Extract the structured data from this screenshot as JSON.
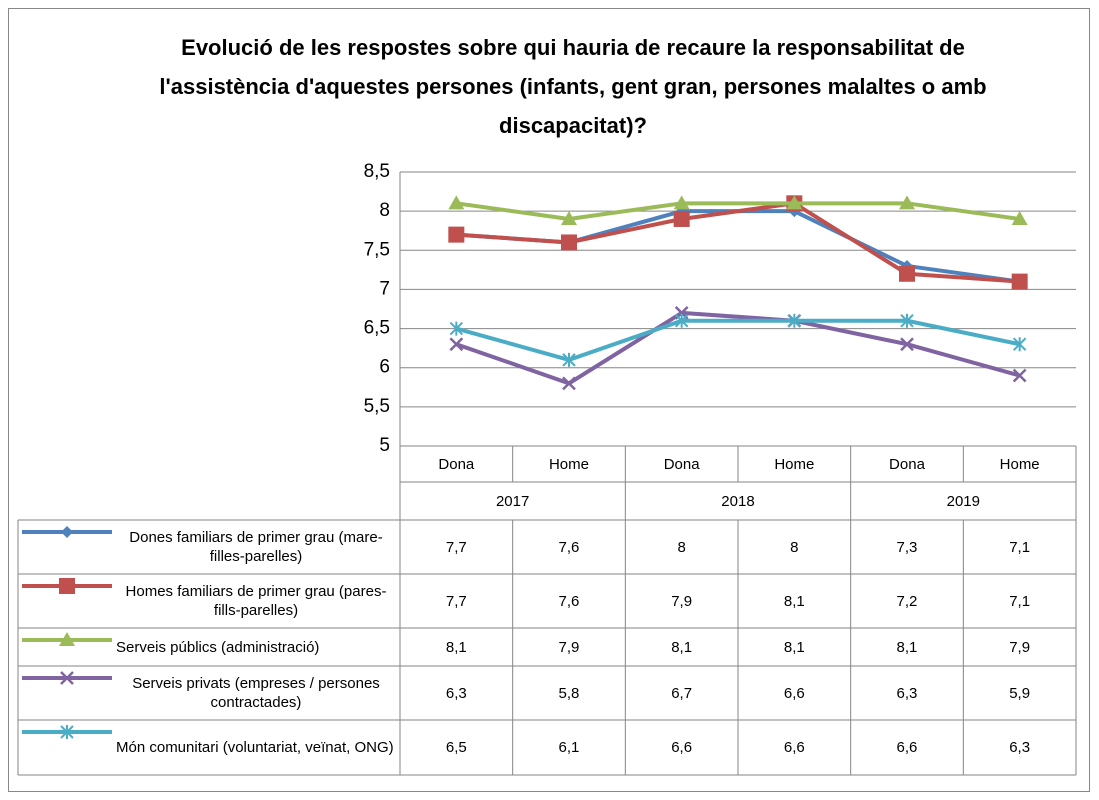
{
  "chart_data": {
    "type": "line",
    "title": "Evolució de les respostes sobre qui hauria de recaure la responsabilitat de l'assistència d'aquestes persones (infants, gent gran, persones malaltes o amb discapacitat)?",
    "categories": [
      "Dona",
      "Home",
      "Dona",
      "Home",
      "Dona",
      "Home"
    ],
    "category_groups": [
      "2017",
      "2018",
      "2019"
    ],
    "ylim": [
      5,
      8.5
    ],
    "yticks": [
      5,
      {
        "value": 5.5,
        "label": "5,5"
      },
      6,
      {
        "value": 6.5,
        "label": "6,5"
      },
      7,
      {
        "value": 7.5,
        "label": "7,5"
      },
      8,
      {
        "value": 8.5,
        "label": "8,5"
      }
    ],
    "grid": true,
    "series": [
      {
        "name": "Dones familiars de primer grau (mare-filles-parelles)",
        "color": "#4f81bd",
        "marker": "diamond",
        "values": [
          7.7,
          7.6,
          8,
          8,
          7.3,
          7.1
        ],
        "value_labels": [
          "7,7",
          "7,6",
          "8",
          "8",
          "7,3",
          "7,1"
        ]
      },
      {
        "name": "Homes familiars de primer grau (pares-fills-parelles)",
        "color": "#c0504d",
        "marker": "square",
        "values": [
          7.7,
          7.6,
          7.9,
          8.1,
          7.2,
          7.1
        ],
        "value_labels": [
          "7,7",
          "7,6",
          "7,9",
          "8,1",
          "7,2",
          "7,1"
        ]
      },
      {
        "name": "Serveis públics (administració)",
        "color": "#9bbb59",
        "marker": "triangle",
        "values": [
          8.1,
          7.9,
          8.1,
          8.1,
          8.1,
          7.9
        ],
        "value_labels": [
          "8,1",
          "7,9",
          "8,1",
          "8,1",
          "8,1",
          "7,9"
        ]
      },
      {
        "name": "Serveis privats (empreses / persones contractades)",
        "color": "#8064a2",
        "marker": "x",
        "values": [
          6.3,
          5.8,
          6.7,
          6.6,
          6.3,
          5.9
        ],
        "value_labels": [
          "6,3",
          "5,8",
          "6,7",
          "6,6",
          "6,3",
          "5,9"
        ]
      },
      {
        "name": "Món comunitari (voluntariat, veïnat, ONG)",
        "color": "#4bacc6",
        "marker": "star",
        "values": [
          6.5,
          6.1,
          6.6,
          6.6,
          6.6,
          6.3
        ],
        "value_labels": [
          "6,5",
          "6,1",
          "6,6",
          "6,6",
          "6,6",
          "6,3"
        ]
      }
    ]
  }
}
